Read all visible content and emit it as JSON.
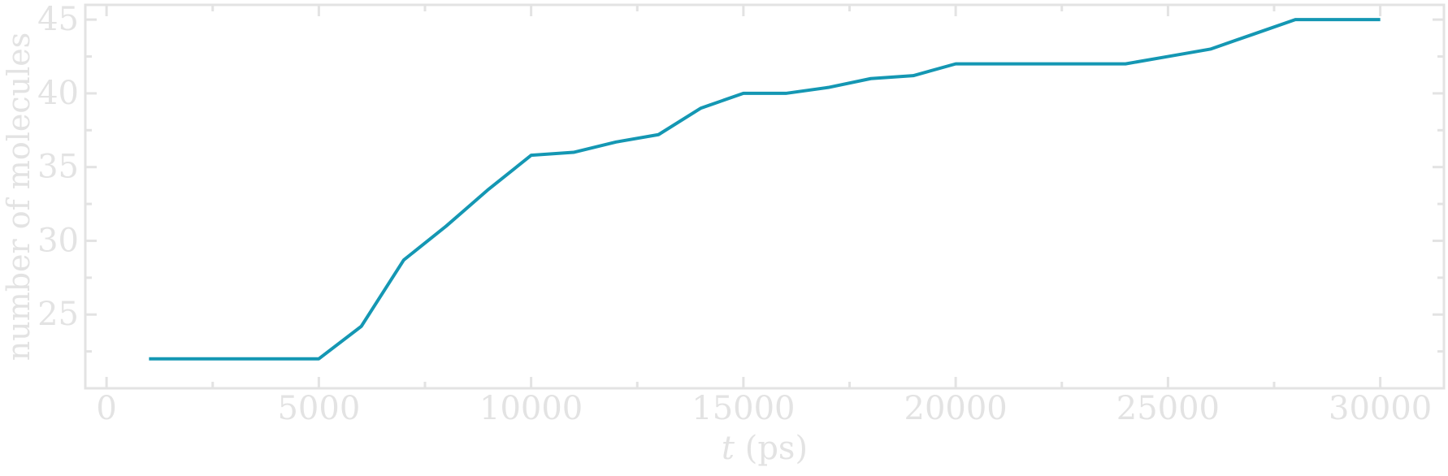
{
  "chart_data": {
    "type": "line",
    "title": "",
    "xlabel_italic": "t",
    "xlabel_rest": " (ps)",
    "ylabel": "number of molecules",
    "xlim": [
      -500,
      31500
    ],
    "ylim": [
      20,
      46
    ],
    "xticks": [
      0,
      5000,
      10000,
      15000,
      20000,
      25000,
      30000
    ],
    "xtick_labels": [
      "0",
      "5000",
      "10000",
      "15000",
      "20000",
      "25000",
      "30000"
    ],
    "xminor_ticks": [
      2500,
      7500,
      12500,
      17500,
      22500,
      27500
    ],
    "yticks": [
      25,
      30,
      35,
      40,
      45
    ],
    "ytick_labels": [
      "25",
      "30",
      "35",
      "40",
      "45"
    ],
    "yminor_ticks": [
      22.5,
      27.5,
      32.5,
      37.5,
      42.5
    ],
    "grid": false,
    "series": [
      {
        "color": "#1497b3",
        "x": [
          1000,
          2000,
          3000,
          4000,
          5000,
          6000,
          7000,
          8000,
          9000,
          10000,
          11000,
          12000,
          13000,
          14000,
          15000,
          16000,
          17000,
          18000,
          19000,
          20000,
          21000,
          22000,
          23000,
          24000,
          25000,
          26000,
          27000,
          28000,
          29000,
          30000
        ],
        "y": [
          22,
          22,
          22,
          22,
          22,
          24.2,
          28.7,
          31,
          33.5,
          35.8,
          36,
          36.7,
          37.2,
          39,
          40,
          40,
          40.4,
          41,
          41.2,
          42,
          42,
          42,
          42,
          42,
          42.5,
          43,
          44,
          45,
          45,
          45
        ]
      }
    ],
    "colors": {
      "axis": "#e3e3e3",
      "text": "#e3e3e3",
      "line": "#1497b3"
    }
  }
}
